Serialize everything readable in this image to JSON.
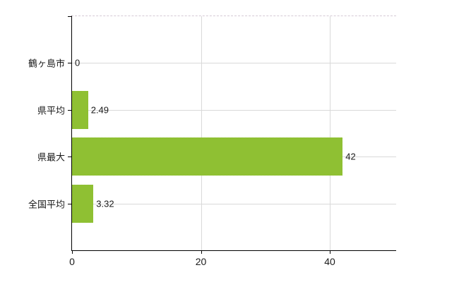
{
  "chart_data": {
    "type": "bar",
    "orientation": "horizontal",
    "title": "",
    "xlabel": "",
    "ylabel": "",
    "categories": [
      "鶴ヶ島市",
      "県平均",
      "県最大",
      "全国平均"
    ],
    "values": [
      0,
      2.49,
      42,
      3.32
    ],
    "value_labels": [
      "0",
      "2.49",
      "42",
      "3.32"
    ],
    "xticks": [
      0,
      20,
      40
    ],
    "xtick_labels": [
      "0",
      "20",
      "40"
    ],
    "xlim": [
      0,
      50.3
    ],
    "grid": "on",
    "legend": "none",
    "colors": {
      "bar": "#9acb3a",
      "bar_dither": "#84b52c",
      "gridline": "#d9d9d9",
      "axis": "#000000",
      "text": "#1a1a1a",
      "background": "#ffffff",
      "top_border_dashed": "#d6c9d6"
    }
  }
}
